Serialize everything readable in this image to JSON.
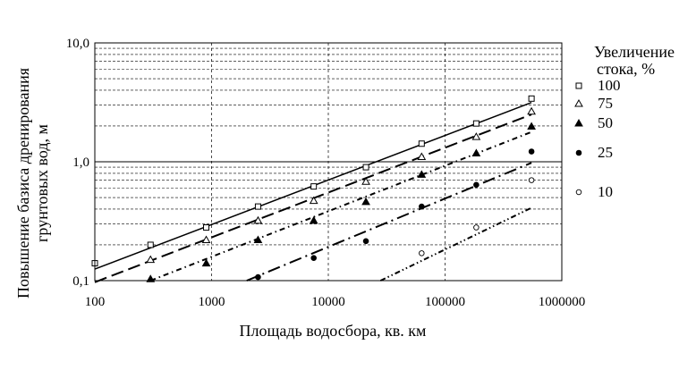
{
  "chart_data": {
    "type": "scatter",
    "x_scale": "log",
    "y_scale": "log",
    "xlim": [
      100,
      1000000
    ],
    "ylim": [
      0.1,
      10
    ],
    "xlabel": "Площадь водосбора, кв. км",
    "ylabel_lines": [
      "Повышение базиса дренирования",
      "грунтовых вод, м"
    ],
    "x_tick_labels": [
      "100",
      "1000",
      "10000",
      "100000",
      "1000000"
    ],
    "x_tick_values": [
      100,
      1000,
      10000,
      100000,
      1000000
    ],
    "y_tick_labels": [
      "0,1",
      "1,0",
      "10,0"
    ],
    "y_tick_values": [
      0.1,
      1,
      10
    ],
    "grid": "dashed minor horizontal lines, solid decade lines, dashed vertical lines",
    "legend_position": "right",
    "legend_title_lines": [
      "Увеличение",
      "стока, %"
    ],
    "series": [
      {
        "name": "100",
        "marker": "open-square",
        "line_style": "solid",
        "x": [
          100,
          300,
          900,
          2500,
          7500,
          21000,
          63000,
          185000,
          550000
        ],
        "y": [
          0.14,
          0.2,
          0.28,
          0.42,
          0.62,
          0.9,
          1.42,
          2.1,
          3.4
        ],
        "trend_x": [
          100,
          550000
        ],
        "trend_y": [
          0.125,
          3.15
        ]
      },
      {
        "name": "75",
        "marker": "open-triangle",
        "line_style": "long-dash",
        "x": [
          300,
          900,
          2500,
          7500,
          21000,
          63000,
          185000,
          550000
        ],
        "y": [
          0.15,
          0.22,
          0.32,
          0.47,
          0.68,
          1.1,
          1.62,
          2.65
        ],
        "trend_x": [
          100,
          550000
        ],
        "trend_y": [
          0.097,
          2.5
        ]
      },
      {
        "name": "50",
        "marker": "filled-triangle",
        "line_style": "dash-dot",
        "x": [
          300,
          900,
          2500,
          7500,
          21000,
          63000,
          185000,
          550000
        ],
        "y": [
          0.103,
          0.14,
          0.22,
          0.32,
          0.46,
          0.78,
          1.18,
          1.98
        ],
        "trend_x": [
          300,
          550000
        ],
        "trend_y": [
          0.1,
          1.78
        ]
      },
      {
        "name": "25",
        "marker": "filled-circle",
        "line_style": "long-dash-dot",
        "x": [
          2500,
          7500,
          21000,
          63000,
          185000,
          550000
        ],
        "y": [
          0.107,
          0.155,
          0.215,
          0.42,
          0.64,
          1.22
        ],
        "trend_x": [
          2000,
          550000
        ],
        "trend_y": [
          0.1,
          0.98
        ]
      },
      {
        "name": "10",
        "marker": "open-circle",
        "line_style": "dash-dot-dot",
        "x": [
          63000,
          185000,
          550000
        ],
        "y": [
          0.17,
          0.28,
          0.7
        ],
        "trend_x": [
          28000,
          550000
        ],
        "trend_y": [
          0.1,
          0.41
        ]
      }
    ]
  }
}
